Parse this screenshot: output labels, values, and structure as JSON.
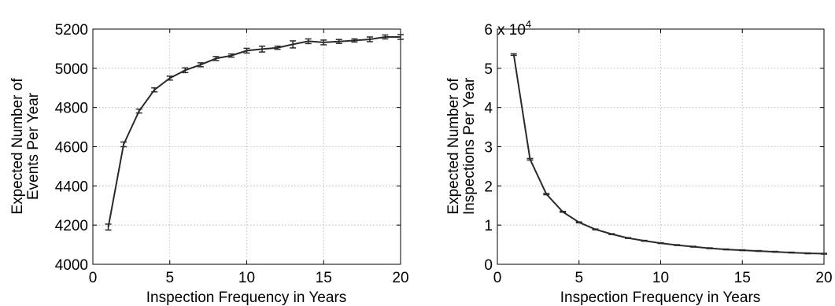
{
  "chart_data": [
    {
      "type": "line",
      "xlabel": "Inspection Frequency in Years",
      "ylabel": [
        "Expected Number of",
        "Events Per Year"
      ],
      "xlim": [
        0,
        20
      ],
      "ylim": [
        4000,
        5200
      ],
      "xticks": [
        0,
        5,
        10,
        15,
        20
      ],
      "yticks": [
        4000,
        4200,
        4400,
        4600,
        4800,
        5000,
        5200
      ],
      "grid": true,
      "error_bars": true,
      "x": [
        1,
        2,
        3,
        4,
        5,
        6,
        7,
        8,
        9,
        10,
        11,
        12,
        13,
        14,
        15,
        16,
        17,
        18,
        19,
        20
      ],
      "y": [
        4190,
        4612,
        4782,
        4890,
        4950,
        4990,
        5018,
        5050,
        5065,
        5090,
        5098,
        5105,
        5122,
        5138,
        5132,
        5137,
        5142,
        5148,
        5160,
        5160
      ],
      "err": [
        15,
        12,
        10,
        10,
        10,
        12,
        10,
        10,
        8,
        12,
        15,
        8,
        18,
        12,
        12,
        10,
        8,
        12,
        10,
        12
      ]
    },
    {
      "type": "line",
      "xlabel": "Inspection Frequency in Years",
      "ylabel": [
        "Expected Number of",
        "Inspections Per Year"
      ],
      "xlim": [
        0,
        20
      ],
      "ylim": [
        0,
        6
      ],
      "xticks": [
        0,
        5,
        10,
        15,
        20
      ],
      "yticks": [
        0,
        1,
        2,
        3,
        4,
        5,
        6
      ],
      "y_multiplier": {
        "base": "x 10",
        "exponent": "4"
      },
      "grid": true,
      "error_bars": true,
      "x": [
        1,
        2,
        3,
        4,
        5,
        6,
        7,
        8,
        9,
        10,
        11,
        12,
        13,
        14,
        15,
        16,
        17,
        18,
        19,
        20
      ],
      "y": [
        5.35,
        2.68,
        1.79,
        1.34,
        1.07,
        0.89,
        0.77,
        0.67,
        0.6,
        0.54,
        0.49,
        0.45,
        0.41,
        0.38,
        0.36,
        0.34,
        0.32,
        0.3,
        0.28,
        0.27
      ],
      "err": [
        0.02,
        0.02,
        0.015,
        0.01,
        0.01,
        0.01,
        0.01,
        0.01,
        0.01,
        0.01,
        0.01,
        0.01,
        0.01,
        0.01,
        0.01,
        0.01,
        0.01,
        0.01,
        0.01,
        0.01
      ]
    }
  ]
}
